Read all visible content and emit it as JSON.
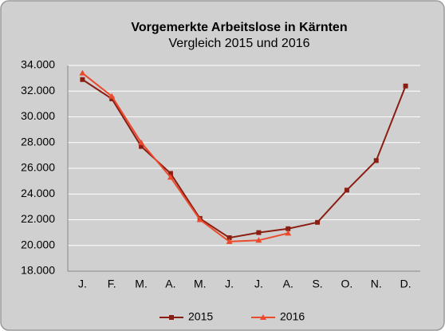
{
  "chart_data": {
    "type": "line",
    "title": "Vorgemerkte Arbeitslose  in Kärnten",
    "subtitle": "Vergleich 2015 und 2016",
    "categories": [
      "J.",
      "F.",
      "M.",
      "A.",
      "M.",
      "J.",
      "J.",
      "A.",
      "S.",
      "O.",
      "N.",
      "D."
    ],
    "series": [
      {
        "name": "2015",
        "color": "#8b1e12",
        "marker": "square",
        "values": [
          32900,
          31400,
          27700,
          25600,
          22100,
          20600,
          21000,
          21300,
          21800,
          24300,
          26600,
          32400
        ]
      },
      {
        "name": "2016",
        "color": "#ec4a2c",
        "marker": "triangle",
        "values": [
          33400,
          31600,
          28000,
          25300,
          22000,
          20300,
          20400,
          20950,
          null,
          null,
          null,
          null
        ]
      }
    ],
    "ylim": [
      18000,
      34000
    ],
    "yticks": [
      {
        "value": 18000,
        "label": "18.000"
      },
      {
        "value": 20000,
        "label": "20.000"
      },
      {
        "value": 22000,
        "label": "22.000"
      },
      {
        "value": 24000,
        "label": "24.000"
      },
      {
        "value": 26000,
        "label": "26.000"
      },
      {
        "value": 28000,
        "label": "28.000"
      },
      {
        "value": 30000,
        "label": "30.000"
      },
      {
        "value": 32000,
        "label": "32.000"
      },
      {
        "value": 34000,
        "label": "34.000"
      }
    ],
    "grid": true,
    "legend": "bottom"
  }
}
